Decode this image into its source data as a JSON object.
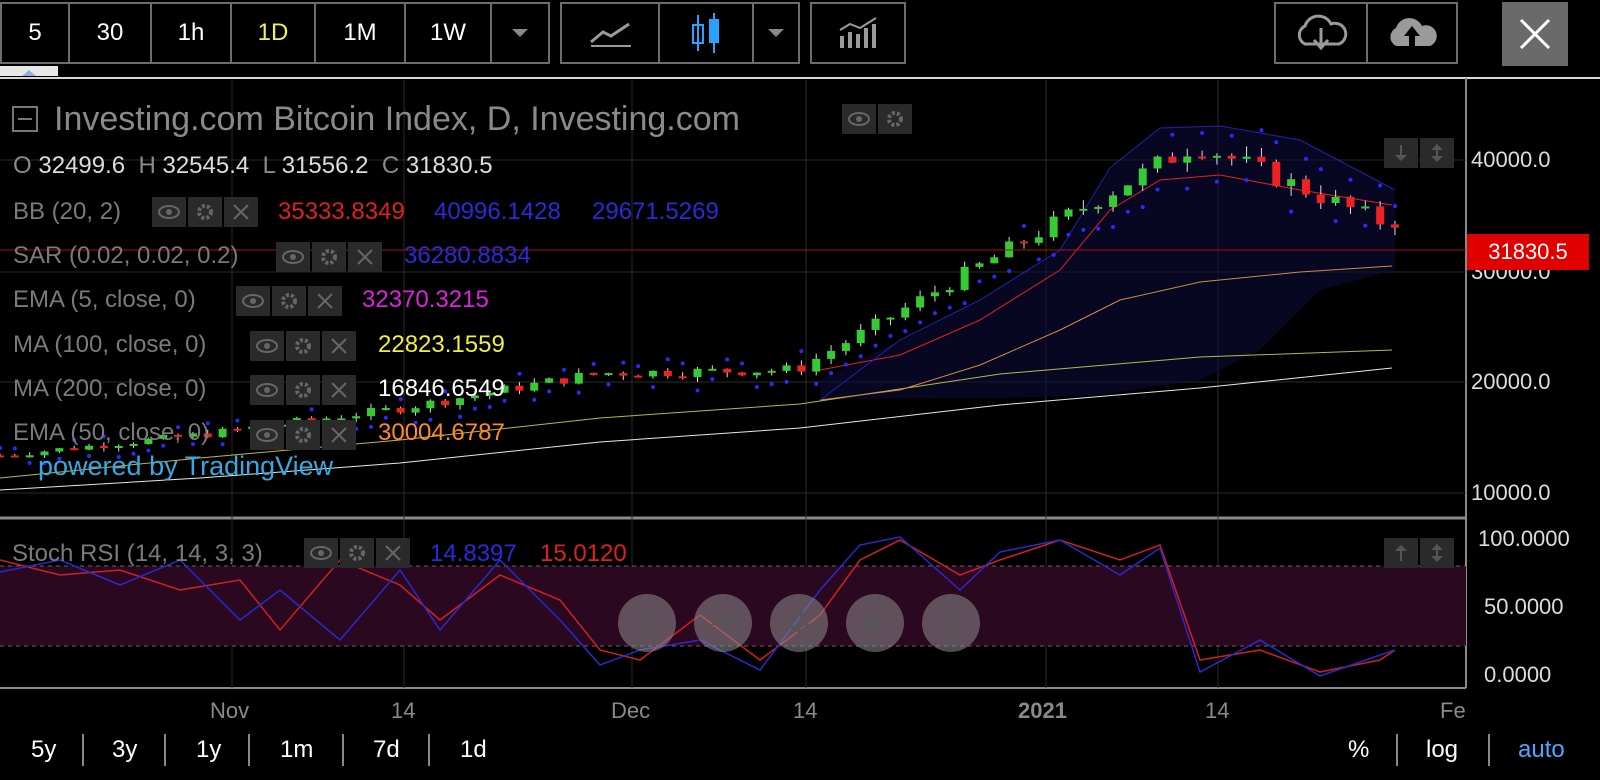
{
  "toolbar": {
    "intervals": [
      "5",
      "30",
      "1h",
      "1D",
      "1M",
      "1W"
    ],
    "active_interval": "1D"
  },
  "chart": {
    "title": "Investing.com Bitcoin Index, D, Investing.com",
    "ohlc": {
      "o_label": "O",
      "o": "32499.6",
      "h_label": "H",
      "h": "32545.4",
      "l_label": "L",
      "l": "31556.2",
      "c_label": "C",
      "c": "31830.5"
    },
    "indicators": [
      {
        "label": "BB (20, 2)",
        "values": [
          "35333.8349",
          "40996.1428",
          "29671.5269"
        ]
      },
      {
        "label": "SAR (0.02, 0.02, 0.2)",
        "values": [
          "36280.8834"
        ]
      },
      {
        "label": "EMA (5, close, 0)",
        "values": [
          "32370.3215"
        ]
      },
      {
        "label": "MA (100, close, 0)",
        "values": [
          "22823.1559"
        ]
      },
      {
        "label": "MA (200, close, 0)",
        "values": [
          "16846.6549"
        ]
      },
      {
        "label": "EMA (50, close, 0)",
        "values": [
          "30004.6787"
        ]
      }
    ],
    "watermark": "powered by TradingView",
    "current_price": "31830.5",
    "y_ticks": [
      "40000.0",
      "30000.0",
      "20000.0",
      "10000.0"
    ],
    "stoch": {
      "label": "Stoch RSI (14, 14, 3, 3)",
      "values": [
        "14.8397",
        "15.0120"
      ],
      "y_ticks": [
        "100.0000",
        "50.0000",
        "0.0000"
      ]
    },
    "x_ticks": [
      "Nov",
      "14",
      "Dec",
      "14",
      "2021",
      "14",
      "Fe"
    ]
  },
  "bottom": {
    "ranges": [
      "5y",
      "3y",
      "1y",
      "1m",
      "7d",
      "1d"
    ],
    "options": [
      "%",
      "log",
      "auto"
    ]
  },
  "colors": {
    "up": "#33cc33",
    "down": "#ee2222",
    "bb_mid": "#ff2020",
    "blue": "#1a1ad0",
    "ema5": "#dd22dd",
    "ma100": "#eeee44",
    "ma200": "#ffffff",
    "ema50": "#ff8c1a",
    "auto": "#4aa8ff"
  },
  "chart_data": {
    "type": "candlestick",
    "x": [
      "2020-10-20",
      "2020-11-01",
      "2020-11-14",
      "2020-12-01",
      "2020-12-14",
      "2021-01-01",
      "2021-01-14",
      "2021-01-28"
    ],
    "approx_close": [
      11900,
      13700,
      16000,
      19100,
      19400,
      29300,
      39200,
      31830.5
    ],
    "ylim": [
      8000,
      43000
    ],
    "y_ticks": [
      10000,
      20000,
      30000,
      40000
    ]
  }
}
